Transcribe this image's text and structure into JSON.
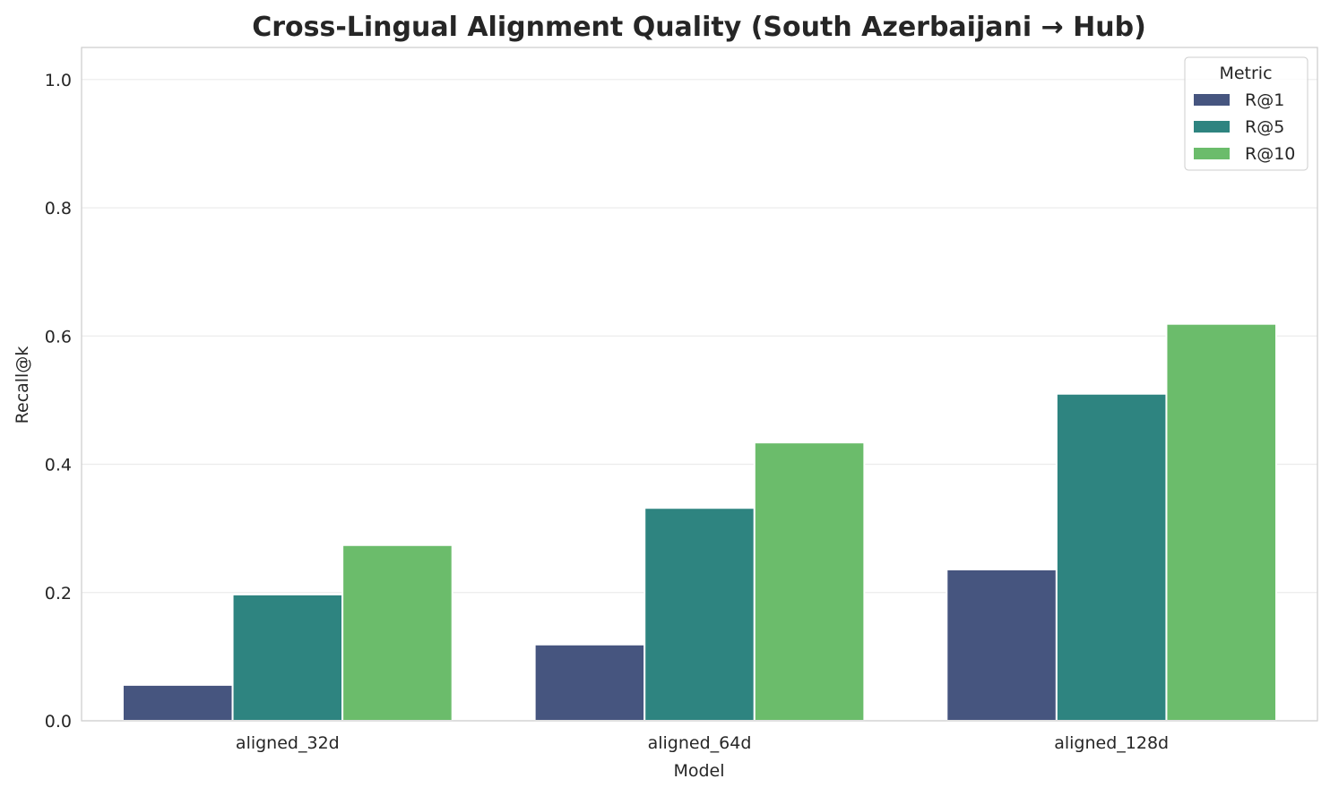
{
  "chart_data": {
    "type": "bar",
    "title": "Cross-Lingual Alignment Quality (South Azerbaijani → Hub)",
    "xlabel": "Model",
    "ylabel": "Recall@k",
    "ylim": [
      0,
      1.05
    ],
    "yticks": [
      "0.0",
      "0.2",
      "0.4",
      "0.6",
      "0.8",
      "1.0"
    ],
    "grid": "horizontal",
    "categories": [
      "aligned_32d",
      "aligned_64d",
      "aligned_128d"
    ],
    "legend": {
      "title": "Metric",
      "placement": "top-right"
    },
    "series": [
      {
        "name": "R@1",
        "color": "#46557f",
        "values": [
          0.056,
          0.119,
          0.236
        ]
      },
      {
        "name": "R@5",
        "color": "#2e8480",
        "values": [
          0.197,
          0.332,
          0.51
        ]
      },
      {
        "name": "R@10",
        "color": "#6bbc6b",
        "values": [
          0.274,
          0.434,
          0.619
        ]
      }
    ]
  }
}
